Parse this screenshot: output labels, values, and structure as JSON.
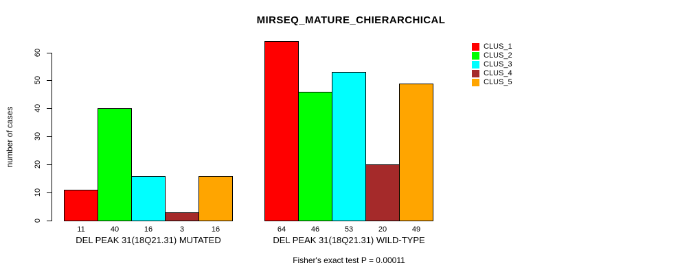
{
  "chart_data": {
    "type": "bar",
    "title": "MIRSEQ_MATURE_CHIERARCHICAL",
    "ylabel": "number of cases",
    "ylim": [
      0,
      64
    ],
    "yticks": [
      0,
      10,
      20,
      30,
      40,
      50,
      60
    ],
    "grid": false,
    "legend_position": "top-right",
    "series": [
      {
        "name": "CLUS_1",
        "color": "#FF0000"
      },
      {
        "name": "CLUS_2",
        "color": "#00FF00"
      },
      {
        "name": "CLUS_3",
        "color": "#00FFFF"
      },
      {
        "name": "CLUS_4",
        "color": "#A52A2A"
      },
      {
        "name": "CLUS_5",
        "color": "#FFA500"
      }
    ],
    "groups": [
      {
        "label": "DEL PEAK 31(18Q21.31) MUTATED",
        "values": [
          11,
          40,
          16,
          3,
          16
        ]
      },
      {
        "label": "DEL PEAK 31(18Q21.31) WILD-TYPE",
        "values": [
          64,
          46,
          53,
          20,
          49
        ]
      }
    ],
    "annotation": "Fisher's exact test P = 0.00011",
    "background_color": "#FFFFFF",
    "axis_color": "#000000"
  }
}
